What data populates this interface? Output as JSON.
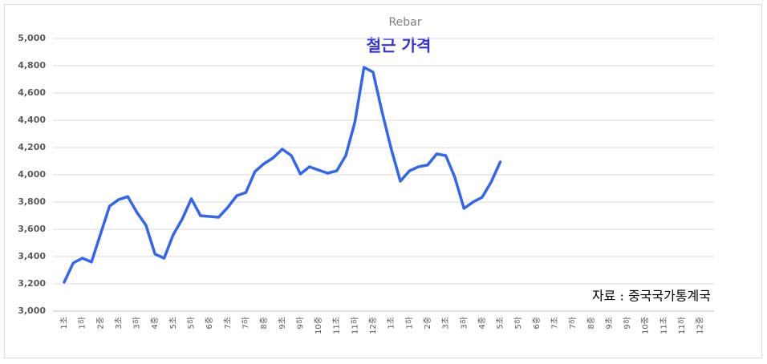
{
  "chart_data": {
    "type": "line",
    "title": "Rebar",
    "annotations": [
      "철근 가격",
      "자료 : 중국국가통계국"
    ],
    "categories": [
      "1초",
      null,
      "1하",
      null,
      "2중",
      null,
      "3초",
      null,
      "3하",
      null,
      "4중",
      null,
      "5초",
      null,
      "5하",
      null,
      "6중",
      null,
      "7초",
      null,
      "7하",
      null,
      "8중",
      null,
      "9초",
      null,
      "9하",
      null,
      "10중",
      null,
      "11초",
      null,
      "11하",
      null,
      "12중",
      null,
      "1초",
      null,
      "1하",
      null,
      "2중",
      null,
      "3초",
      null,
      "3하",
      null,
      "4중",
      null,
      "5초",
      null,
      "5하",
      null,
      "6중",
      null,
      "7초",
      null,
      "7하",
      null,
      "8중",
      null,
      "9초",
      null,
      "9하",
      null,
      "10중",
      null,
      "11초",
      null,
      "11하",
      null,
      "12중",
      null
    ],
    "series": [
      {
        "name": "Rebar",
        "color": "#3366ee",
        "values": [
          3212,
          3353,
          3388,
          3360,
          3565,
          3770,
          3818,
          3840,
          3724,
          3630,
          3418,
          3388,
          3560,
          3676,
          3824,
          3700,
          3694,
          3688,
          3760,
          3847,
          3870,
          4024,
          4082,
          4124,
          4188,
          4141,
          4006,
          4059,
          4035,
          4012,
          4029,
          4141,
          4388,
          4788,
          4753,
          4459,
          4188,
          3953,
          4029,
          4059,
          4071,
          4153,
          4141,
          3982,
          3753,
          3800,
          3835,
          3947,
          4094,
          null,
          null,
          null,
          null,
          null,
          null,
          null,
          null,
          null,
          null,
          null,
          null,
          null,
          null,
          null,
          null,
          null,
          null,
          null,
          null,
          null,
          null,
          null
        ]
      }
    ],
    "ylim": [
      3000,
      5000
    ],
    "yticks": [
      {
        "value": 3000,
        "label": "3,000"
      },
      {
        "value": 3200,
        "label": "3,200"
      },
      {
        "value": 3400,
        "label": "3,400"
      },
      {
        "value": 3600,
        "label": "3,600"
      },
      {
        "value": 3800,
        "label": "3,800"
      },
      {
        "value": 4000,
        "label": "4,000"
      },
      {
        "value": 4200,
        "label": "4,200"
      },
      {
        "value": 4400,
        "label": "4,400"
      },
      {
        "value": 4600,
        "label": "4,600"
      },
      {
        "value": 4800,
        "label": "4,800"
      },
      {
        "value": 5000,
        "label": "5,000"
      }
    ],
    "grid": true
  }
}
